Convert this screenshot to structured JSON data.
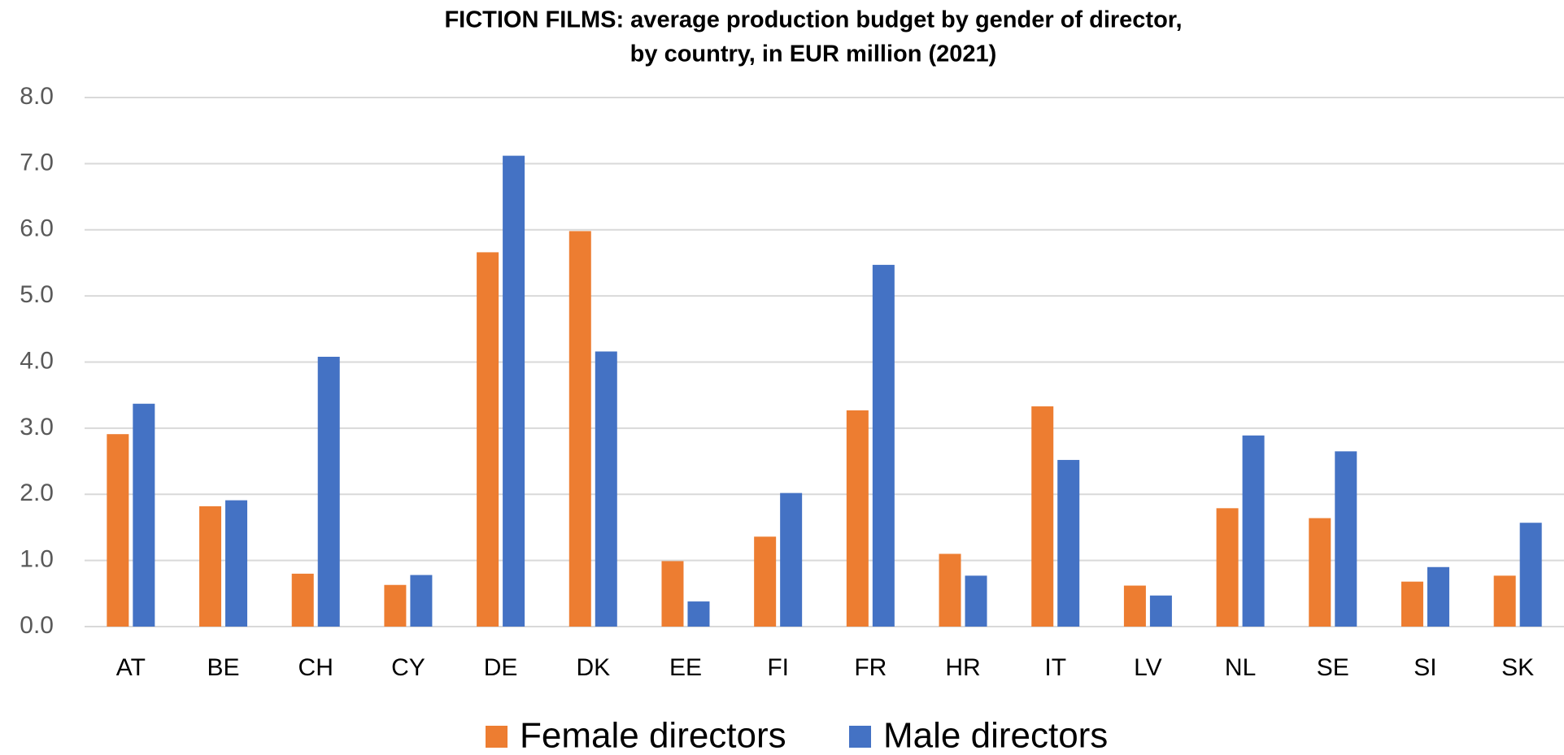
{
  "chart_data": {
    "type": "bar",
    "title": [
      "FICTION FILMS: average production budget by gender of director,",
      "by country, in EUR million (2021)"
    ],
    "categories": [
      "AT",
      "BE",
      "CH",
      "CY",
      "DE",
      "DK",
      "EE",
      "FI",
      "FR",
      "HR",
      "IT",
      "LV",
      "NL",
      "SE",
      "SI",
      "SK"
    ],
    "series": [
      {
        "name": "Female directors",
        "color": "#ed7d31",
        "values": [
          2.91,
          1.82,
          0.8,
          0.63,
          5.66,
          5.98,
          0.99,
          1.36,
          3.27,
          1.1,
          3.33,
          0.62,
          1.79,
          1.64,
          0.68,
          0.77
        ]
      },
      {
        "name": "Male directors",
        "color": "#4472c4",
        "values": [
          3.37,
          1.91,
          4.08,
          0.78,
          7.12,
          4.16,
          0.38,
          2.02,
          5.47,
          0.77,
          2.52,
          0.47,
          2.89,
          2.65,
          0.9,
          1.57
        ]
      }
    ],
    "ylim": [
      0,
      8
    ],
    "yticks": [
      {
        "value": 0,
        "label": "0.0"
      },
      {
        "value": 1,
        "label": "1.0"
      },
      {
        "value": 2,
        "label": "2.0"
      },
      {
        "value": 3,
        "label": "3.0"
      },
      {
        "value": 4,
        "label": "4.0"
      },
      {
        "value": 5,
        "label": "5.0"
      },
      {
        "value": 6,
        "label": "6.0"
      },
      {
        "value": 7,
        "label": "7.0"
      },
      {
        "value": 8,
        "label": "8.0"
      }
    ],
    "grid": true,
    "legend": "bottom"
  }
}
